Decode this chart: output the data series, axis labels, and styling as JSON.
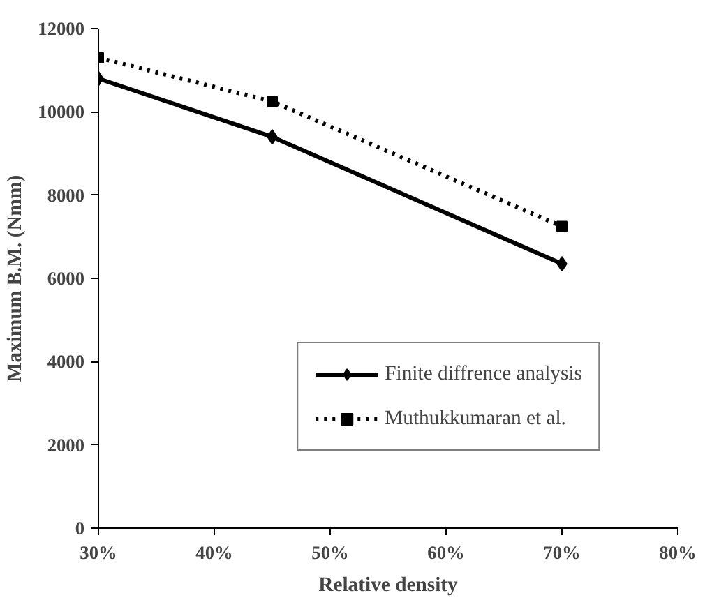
{
  "chart_data": {
    "type": "line",
    "xlabel": "Relative density",
    "ylabel": "Maximum B.M. (Nmm)",
    "x": [
      0.3,
      0.45,
      0.7
    ],
    "xlim": [
      0.3,
      0.8
    ],
    "xticks": [
      {
        "value": 0.3,
        "label": "30%"
      },
      {
        "value": 0.4,
        "label": "40%"
      },
      {
        "value": 0.5,
        "label": "50%"
      },
      {
        "value": 0.6,
        "label": "60%"
      },
      {
        "value": 0.7,
        "label": "70%"
      },
      {
        "value": 0.8,
        "label": "80%"
      }
    ],
    "ylim": [
      0,
      12000
    ],
    "yticks": [
      0,
      2000,
      4000,
      6000,
      8000,
      10000,
      12000
    ],
    "grid": false,
    "legend": "bottom right",
    "series": [
      {
        "name": "Finite diffrence analysis",
        "color": "#000000",
        "marker": "diamond",
        "line_style": "solid",
        "values": [
          10800,
          9400,
          6350
        ]
      },
      {
        "name": "Muthukkumaran et al.",
        "color": "#000000",
        "marker": "square",
        "line_style": "dotted",
        "values": [
          11300,
          10250,
          7250
        ]
      }
    ]
  }
}
